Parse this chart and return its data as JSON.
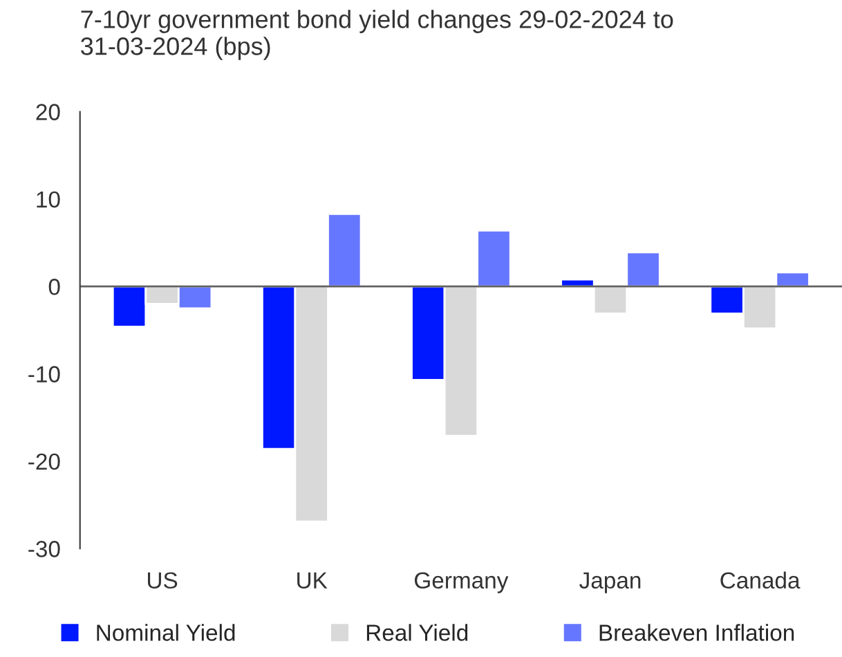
{
  "chart_data": {
    "type": "bar",
    "title": "7-10yr government bond yield changes 29-02-2024 to\n31-03-2024 (bps)",
    "categories": [
      "US",
      "UK",
      "Germany",
      "Japan",
      "Canada"
    ],
    "series": [
      {
        "name": "Nominal Yield",
        "color": "#0018ff",
        "values": [
          -4.6,
          -18.6,
          -10.7,
          0.8,
          -3.1
        ]
      },
      {
        "name": "Real Yield",
        "color": "#d9d9d9",
        "values": [
          -2.0,
          -26.9,
          -17.1,
          -3.1,
          -4.8
        ]
      },
      {
        "name": "Breakeven Inflation",
        "color": "#6677ff",
        "values": [
          -2.5,
          8.3,
          6.4,
          3.9,
          1.6
        ]
      }
    ],
    "ylim": [
      -30,
      20
    ],
    "yticks": [
      -30,
      -20,
      -10,
      0,
      10,
      20
    ],
    "ref_lines": [
      {
        "axis": "y",
        "value": 0,
        "color": "#606060",
        "line_style": "solid"
      }
    ],
    "grid": false,
    "legend": "bottom"
  }
}
